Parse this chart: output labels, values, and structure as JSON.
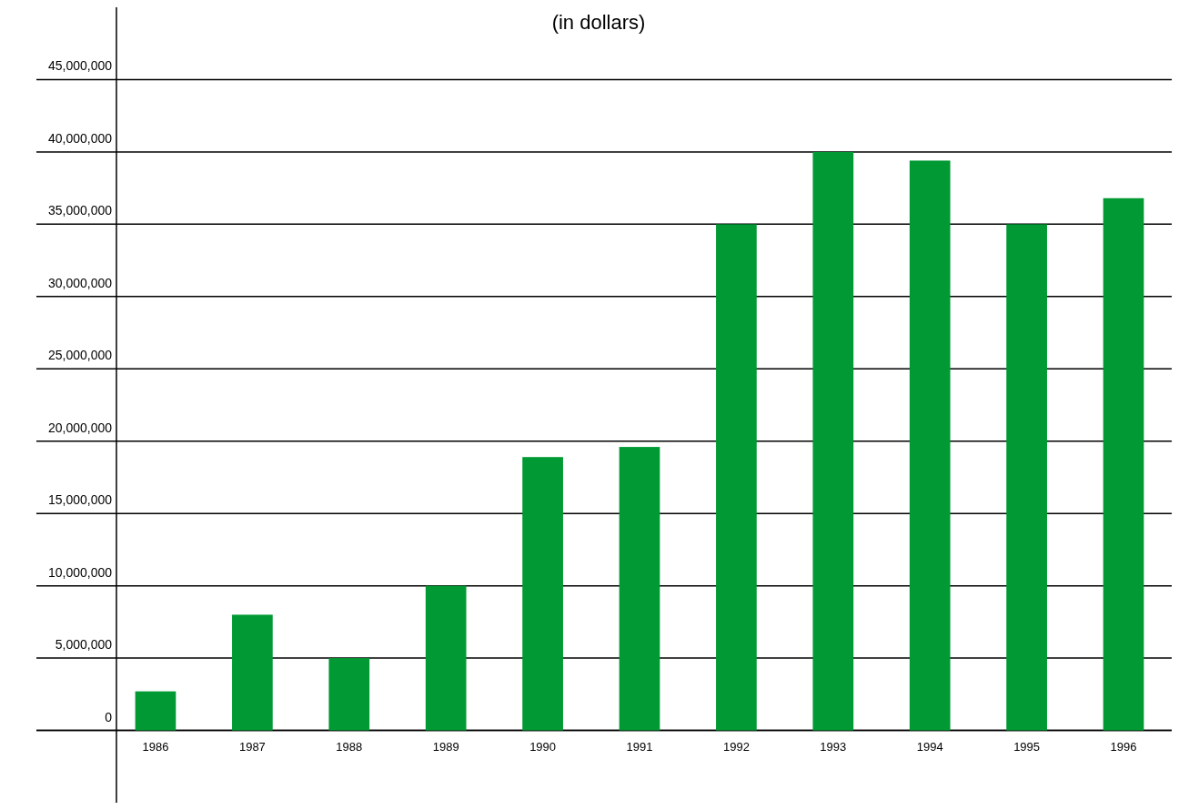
{
  "chart_data": {
    "type": "bar",
    "title": "(in dollars)",
    "categories": [
      "1986",
      "1987",
      "1988",
      "1989",
      "1990",
      "1991",
      "1992",
      "1993",
      "1994",
      "1995",
      "1996"
    ],
    "values": [
      2700000,
      8000000,
      5000000,
      10000000,
      18900000,
      19600000,
      35000000,
      40000000,
      39400000,
      35000000,
      36800000
    ],
    "color": "#009933",
    "ylim": [
      -5000000,
      50000000
    ],
    "yticks": [
      {
        "value": 0,
        "label": "0"
      },
      {
        "value": 5000000,
        "label": "5,000,000"
      },
      {
        "value": 10000000,
        "label": "10,000,000"
      },
      {
        "value": 15000000,
        "label": "15,000,000"
      },
      {
        "value": 20000000,
        "label": "20,000,000"
      },
      {
        "value": 25000000,
        "label": "25,000,000"
      },
      {
        "value": 30000000,
        "label": "30,000,000"
      },
      {
        "value": 35000000,
        "label": "35,000,000"
      },
      {
        "value": 40000000,
        "label": "40,000,000"
      },
      {
        "value": 45000000,
        "label": "45,000,000"
      }
    ],
    "grid": "y"
  }
}
